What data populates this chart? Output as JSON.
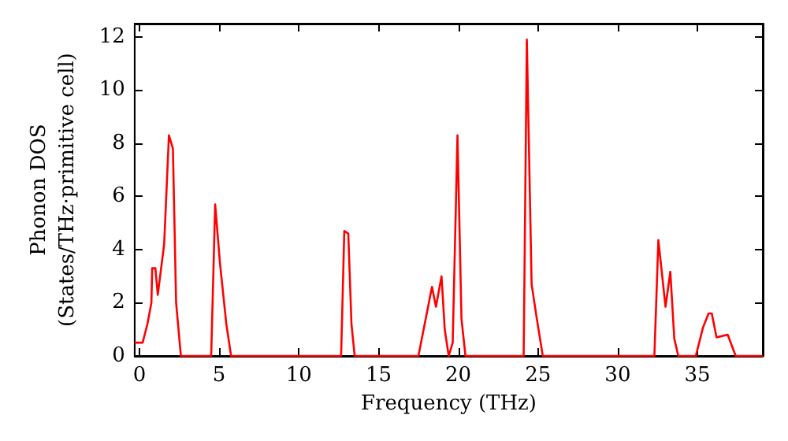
{
  "chart_data": {
    "type": "line",
    "xlabel": "Frequency (THz)",
    "ylabel": "Phonon DOS\n(States/THz·primitive cell)",
    "xlim": [
      -0.3,
      39.1
    ],
    "ylim": [
      0,
      12.5
    ],
    "xticks": [
      0,
      5,
      10,
      15,
      20,
      25,
      30,
      35
    ],
    "yticks": [
      0,
      2,
      4,
      6,
      8,
      10,
      12
    ],
    "grid": false,
    "marker": "none",
    "line_style": "solid",
    "series": [
      {
        "color": "#ff0000",
        "x": [
          -0.3,
          0.2,
          0.5,
          0.75,
          0.8,
          1.0,
          1.15,
          1.55,
          1.85,
          2.1,
          2.3,
          2.6,
          4.5,
          4.75,
          5.05,
          5.45,
          5.75,
          12.65,
          12.85,
          13.1,
          13.3,
          13.5,
          17.5,
          18.35,
          18.6,
          18.95,
          19.15,
          19.4,
          19.65,
          19.95,
          20.2,
          20.45,
          24.1,
          24.3,
          24.6,
          24.9,
          25.3,
          32.3,
          32.55,
          33.0,
          33.3,
          33.55,
          33.8,
          34.9,
          35.35,
          35.7,
          35.9,
          36.2,
          36.9,
          37.4,
          39.1
        ],
        "values": [
          0.5,
          0.5,
          1.2,
          2.0,
          3.3,
          3.3,
          2.3,
          4.2,
          8.3,
          7.8,
          2.0,
          0,
          0,
          5.7,
          3.5,
          1.2,
          0,
          0,
          4.7,
          4.6,
          1.2,
          0,
          0,
          2.6,
          1.85,
          3.0,
          1.0,
          0,
          0.5,
          8.3,
          1.4,
          0,
          0,
          11.9,
          2.7,
          1.5,
          0,
          0,
          4.36,
          1.85,
          3.17,
          0.65,
          0,
          0,
          1.07,
          1.6,
          1.6,
          0.7,
          0.8,
          0,
          0
        ]
      }
    ]
  }
}
